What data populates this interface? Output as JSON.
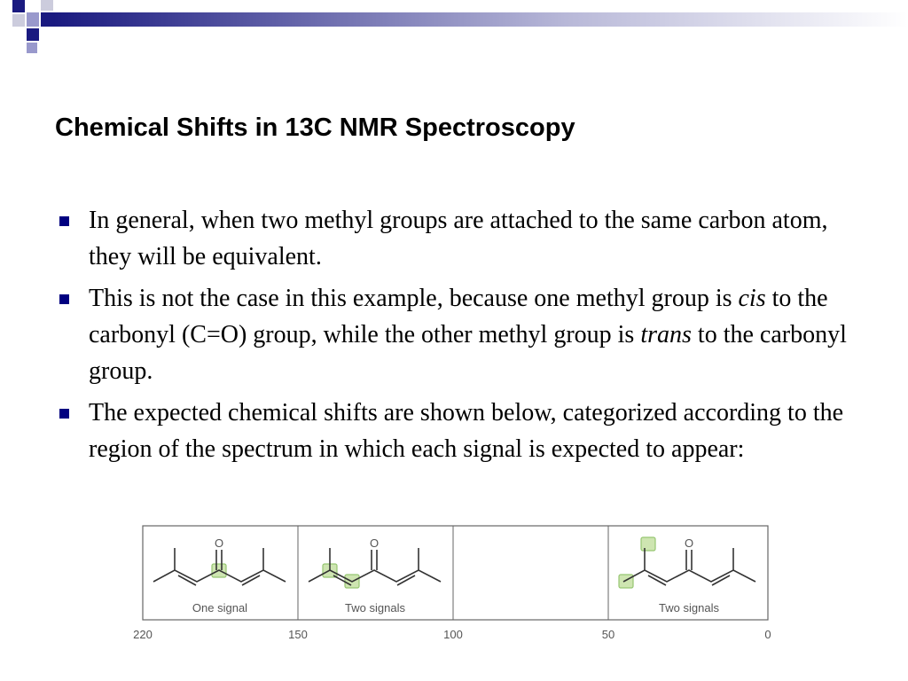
{
  "header": {
    "title": "Chemical Shifts in 13C NMR Spectroscopy"
  },
  "bullets": [
    [
      "In general, when two methyl groups are attached to the same carbon atom, they will be equivalent."
    ],
    [
      "This is not the case in this example, because one methyl group is ",
      "cis",
      " to the carbonyl (C=O) group, while the other methyl group is ",
      "trans",
      " to the carbonyl group."
    ],
    [
      "The expected chemical shifts are shown below, categorized according to the region of the spectrum in which each signal is expected to appear:"
    ]
  ],
  "figure": {
    "panels": [
      {
        "label": "One signal"
      },
      {
        "label": "Two signals"
      },
      {},
      {
        "label": "Two signals"
      }
    ],
    "scale": [
      "220",
      "150",
      "100",
      "50",
      "0"
    ],
    "atom": "O"
  }
}
